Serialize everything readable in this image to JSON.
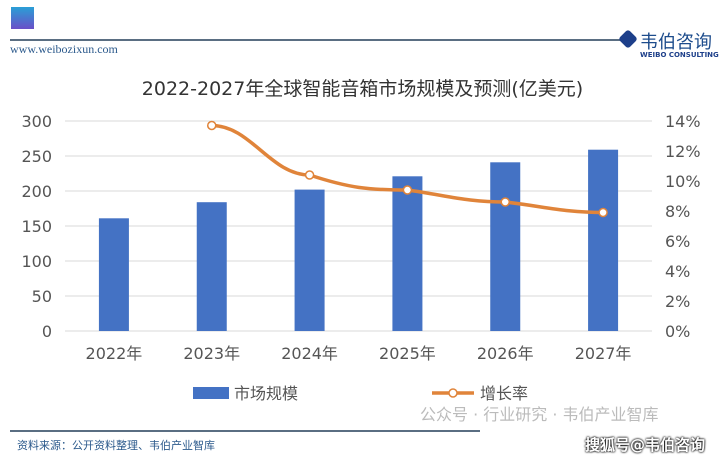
{
  "header": {
    "site": "www.weibozixun.com",
    "brand_cn": "韦伯咨询",
    "brand_en": "WEIBO CONSULTING"
  },
  "footer": {
    "source": "资料来源：公开资料整理、韦伯产业智库",
    "watermark1": "公众号 · 行业研究 · 韦伯产业智库",
    "watermark2": "搜狐号@韦伯咨询"
  },
  "colors": {
    "bar": "#4472c4",
    "line": "#e0843a"
  },
  "chart_data": {
    "type": "bar+line",
    "title": "2022-2027年全球智能音箱市场规模及预测(亿美元)",
    "categories": [
      "2022年",
      "2023年",
      "2024年",
      "2025年",
      "2026年",
      "2027年"
    ],
    "series": [
      {
        "name": "市场规模",
        "type": "bar",
        "axis": "left",
        "values": [
          161,
          184,
          202,
          221,
          241,
          259
        ]
      },
      {
        "name": "增长率",
        "type": "line",
        "axis": "right",
        "values": [
          null,
          13.7,
          10.4,
          9.4,
          8.6,
          7.9
        ]
      }
    ],
    "y_left": {
      "range": [
        0,
        300
      ],
      "ticks": [
        "0",
        "50",
        "100",
        "150",
        "200",
        "250",
        "300"
      ]
    },
    "y_right": {
      "range": [
        0,
        14
      ],
      "ticks": [
        "0%",
        "2%",
        "4%",
        "6%",
        "8%",
        "10%",
        "12%",
        "14%"
      ]
    },
    "grid": true,
    "legend": "bottom"
  }
}
